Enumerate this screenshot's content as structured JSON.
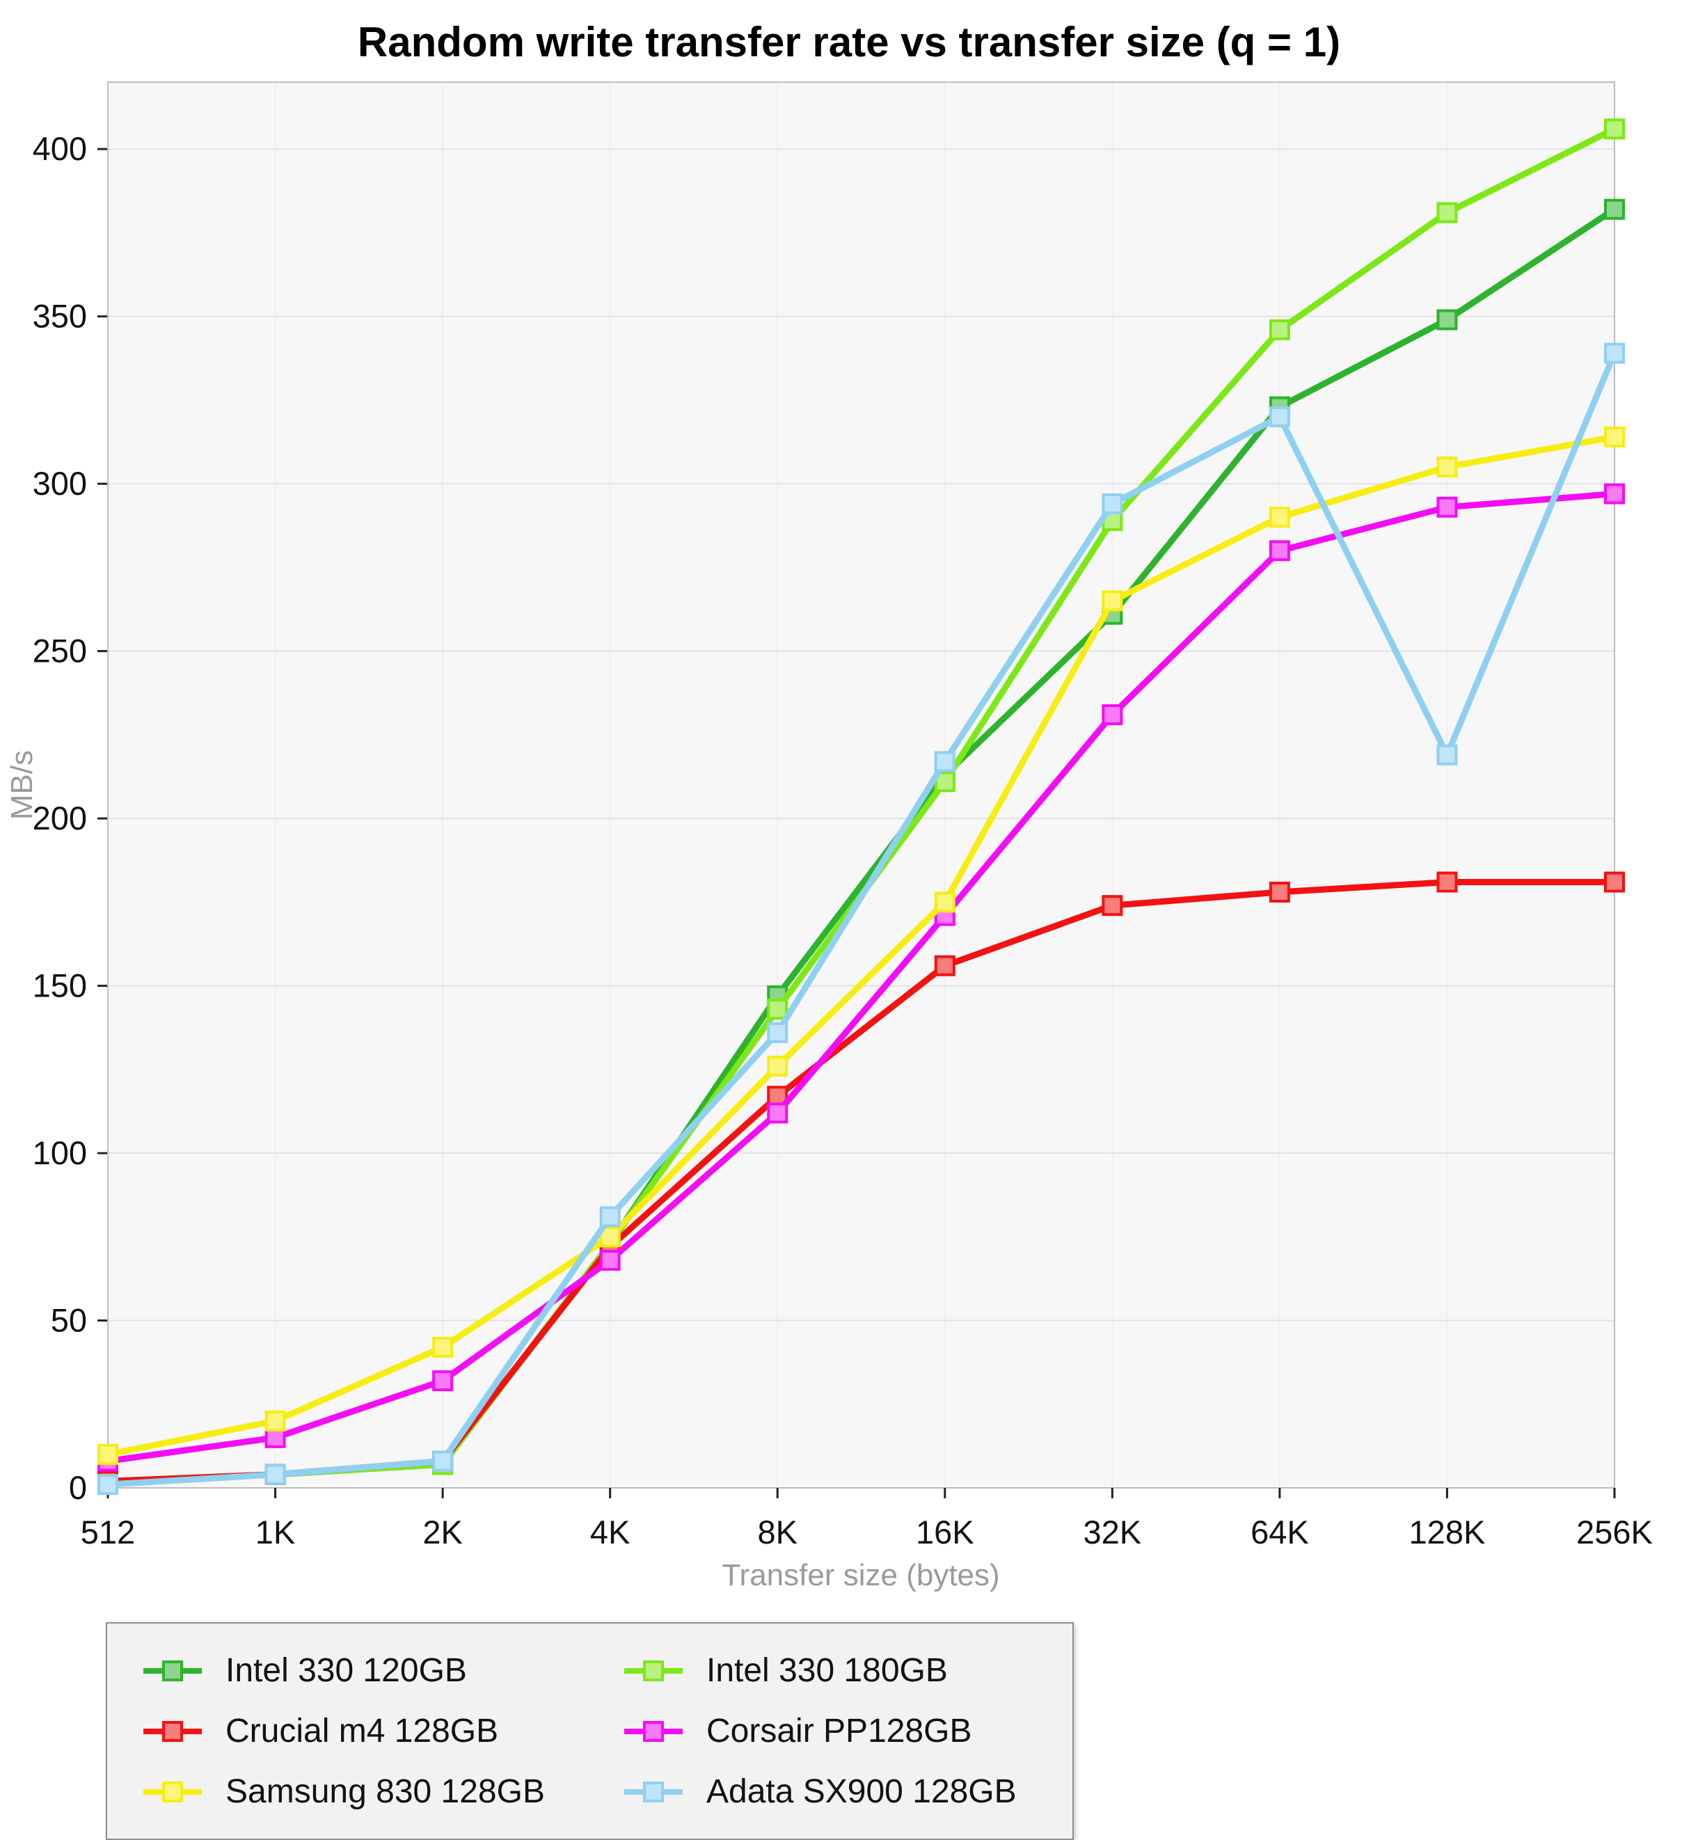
{
  "title": "Random write transfer rate vs transfer size (q = 1)",
  "chart_data": {
    "type": "line",
    "title": "Random write transfer rate vs transfer size (q = 1)",
    "xlabel": "Transfer size (bytes)",
    "ylabel": "MB/s",
    "x_categories": [
      "512",
      "1K",
      "2K",
      "4K",
      "8K",
      "16K",
      "32K",
      "64K",
      "128K",
      "256K"
    ],
    "yticks": [
      0,
      50,
      100,
      150,
      200,
      250,
      300,
      350,
      400
    ],
    "ylim": [
      0,
      420
    ],
    "grid": "on",
    "legend_position": "bottom-left",
    "plot_background": "#f7f7f7",
    "draw_order": [
      0,
      3,
      1,
      4,
      2,
      5
    ],
    "series": [
      {
        "name": "Intel 330 120GB",
        "color": "#2db32d",
        "values": [
          2,
          4,
          7,
          73,
          147,
          213,
          261,
          323,
          349,
          382
        ]
      },
      {
        "name": "Crucial m4 128GB",
        "color": "#f21212",
        "values": [
          2,
          4,
          8,
          72,
          117,
          156,
          174,
          178,
          181,
          181
        ]
      },
      {
        "name": "Samsung 830 128GB",
        "color": "#f7ed13",
        "values": [
          10,
          20,
          42,
          75,
          126,
          175,
          265,
          290,
          305,
          314
        ]
      },
      {
        "name": "Intel 330 180GB",
        "color": "#7de816",
        "values": [
          2,
          4,
          7,
          73,
          143,
          211,
          289,
          346,
          381,
          406
        ]
      },
      {
        "name": "Corsair PP128GB",
        "color": "#f40df4",
        "values": [
          8,
          15,
          32,
          68,
          112,
          171,
          231,
          280,
          293,
          297
        ]
      },
      {
        "name": "Adata SX900 128GB",
        "color": "#8fd0f2",
        "values": [
          1,
          4,
          8,
          81,
          136,
          217,
          294,
          320,
          219,
          339
        ]
      }
    ]
  }
}
